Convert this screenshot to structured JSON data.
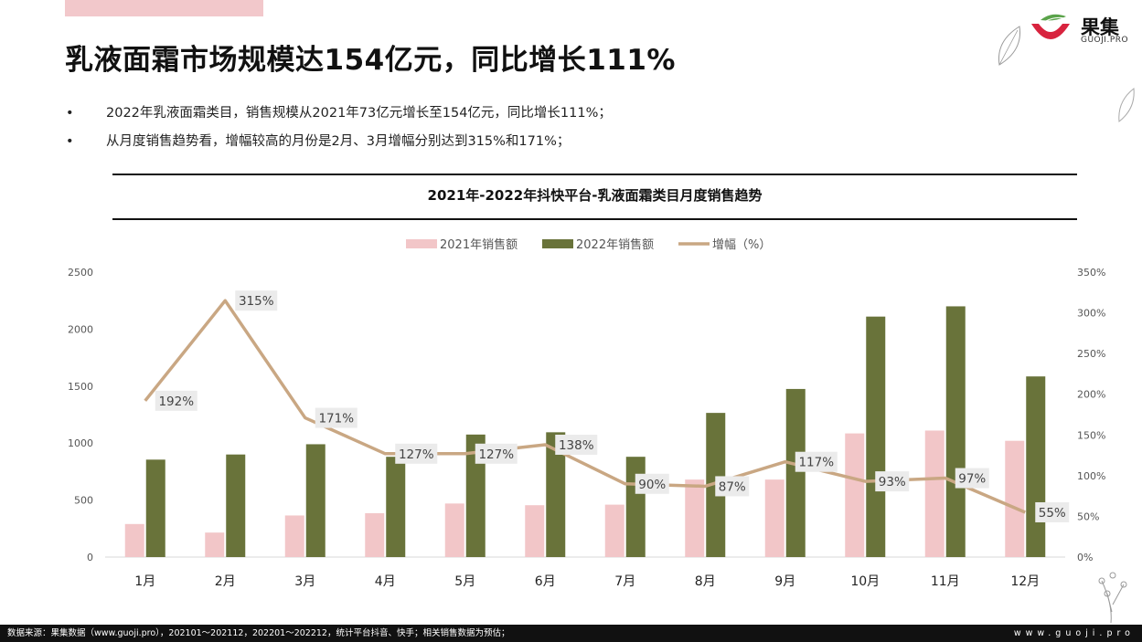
{
  "header": {
    "title": "乳液面霜市场规模达154亿元，同比增长111%",
    "logo_cn": "果集",
    "logo_en": "GUOJI.PRO"
  },
  "bullets": [
    "2022年乳液面霜类目，销售规模从2021年73亿元增长至154亿元，同比增长111%；",
    "从月度销售趋势看，增幅较高的月份是2月、3月增幅分别达到315%和171%；"
  ],
  "bullet_symbol": "•",
  "chart_data": {
    "type": "bar",
    "title": "2021年-2022年抖快平台-乳液面霜类目月度销售趋势",
    "categories": [
      "1月",
      "2月",
      "3月",
      "4月",
      "5月",
      "6月",
      "7月",
      "8月",
      "9月",
      "10月",
      "11月",
      "12月"
    ],
    "series": [
      {
        "name": "2021年销售额",
        "type": "bar",
        "color": "#f2c6c8",
        "values": [
          290,
          215,
          365,
          385,
          470,
          455,
          460,
          680,
          680,
          1085,
          1110,
          1020
        ]
      },
      {
        "name": "2022年销售额",
        "type": "bar",
        "color": "#69733a",
        "values": [
          855,
          900,
          990,
          880,
          1075,
          1095,
          880,
          1265,
          1475,
          2110,
          2200,
          1585
        ]
      },
      {
        "name": "增幅（%）",
        "type": "line",
        "axis": "right",
        "color": "#c9a783",
        "values": [
          192,
          315,
          171,
          127,
          127,
          138,
          90,
          87,
          117,
          93,
          97,
          55
        ],
        "labels": [
          "192%",
          "315%",
          "171%",
          "127%",
          "127%",
          "138%",
          "90%",
          "87%",
          "117%",
          "93%",
          "97%",
          "55%"
        ]
      }
    ],
    "left_axis": {
      "min": 0,
      "max": 2500,
      "ticks": [
        "0",
        "500",
        "1000",
        "1500",
        "2000",
        "2500"
      ]
    },
    "right_axis": {
      "min": 0,
      "max": 350,
      "ticks": [
        "0%",
        "50%",
        "100%",
        "150%",
        "200%",
        "250%",
        "300%",
        "350%"
      ]
    },
    "legend_position": "top-center",
    "grid": false
  },
  "footer": {
    "source": "数据来源：果集数据（www.guoji.pro），202101～202112，202201～202212，统计平台抖音、快手；相关销售数据为预估；",
    "site": "www.guoji.pro"
  }
}
